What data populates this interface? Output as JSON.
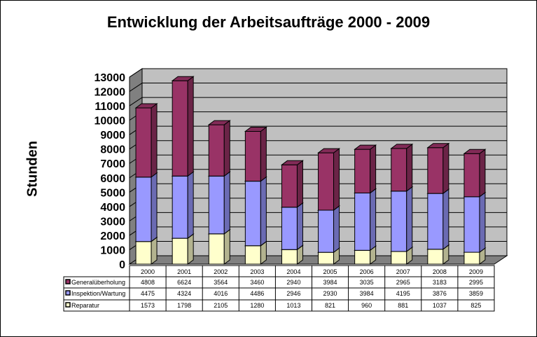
{
  "chart_data": {
    "type": "bar",
    "stacked": true,
    "three_d": true,
    "title": "Entwicklung der Arbeitsaufträge 2000 - 2009",
    "xlabel": "",
    "ylabel": "Stunden",
    "ylim": [
      0,
      13000
    ],
    "yticks": [
      0,
      1000,
      2000,
      3000,
      4000,
      5000,
      6000,
      7000,
      8000,
      9000,
      10000,
      11000,
      12000,
      13000
    ],
    "grid": true,
    "legend": "data-table-below",
    "categories": [
      "2000",
      "2001",
      "2002",
      "2003",
      "2004",
      "2005",
      "2006",
      "2007",
      "2008",
      "2009"
    ],
    "series": [
      {
        "name": "Reparatur",
        "color": "#FFFFCC",
        "values": [
          1573,
          1798,
          2105,
          1280,
          1013,
          821,
          960,
          881,
          1037,
          825
        ]
      },
      {
        "name": "Inspektion/Wartung",
        "color": "#9999FF",
        "values": [
          4475,
          4324,
          4016,
          4486,
          2946,
          2930,
          3984,
          4195,
          3876,
          3859
        ]
      },
      {
        "name": "Generalüberholung",
        "color": "#993366",
        "values": [
          4808,
          6624,
          3564,
          3460,
          2940,
          3984,
          3035,
          2965,
          3183,
          2995
        ]
      }
    ]
  }
}
